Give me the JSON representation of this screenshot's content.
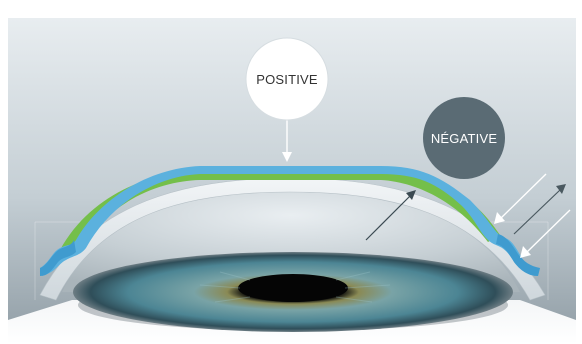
{
  "labels": {
    "positive": "POSITIVE",
    "negative": "NÉGATIVE"
  },
  "colors": {
    "background_top": "#e6ebef",
    "background_bottom": "#9aa6ae",
    "positive_bubble": "#ffffff",
    "positive_text": "#333333",
    "negative_bubble": "#5a6b74",
    "negative_text": "#ffffff",
    "lens_blue": "#5bb1de",
    "lens_green": "#74bf4a",
    "cornea": "#dde3e7",
    "iris": "#5f9aa6",
    "pupil": "#0a0a0a"
  },
  "icons": [
    "eye-illustration",
    "arrow-down-icon",
    "arrow-up-right-icon",
    "arrow-down-left-icon"
  ]
}
